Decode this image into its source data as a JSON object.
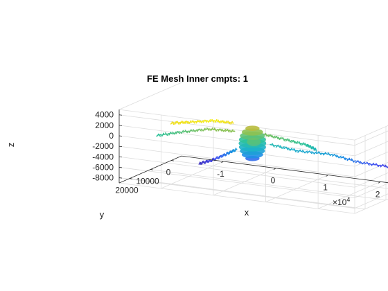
{
  "chart_data": {
    "type": "3d-mesh",
    "title": "FE Mesh Inner cmpts: 1",
    "xlabel": "x",
    "ylabel": "y",
    "zlabel": "z",
    "x_ticks": [
      "-1",
      "0",
      "1",
      "2"
    ],
    "x_exponent_base": "×10",
    "x_exponent_power": "4",
    "y_ticks": [
      "20000",
      "10000",
      "0"
    ],
    "z_ticks": [
      "4000",
      "2000",
      "0",
      "-2000",
      "-4000",
      "-6000",
      "-8000"
    ],
    "xlim": [
      -18000,
      27000
    ],
    "ylim": [
      -5000,
      25000
    ],
    "zlim": [
      -9000,
      5000
    ],
    "grid": true,
    "colormap": "parula",
    "colormap_colors": [
      "#3e26a8",
      "#4750f1",
      "#1d8fe5",
      "#1cb1c7",
      "#2ec29a",
      "#8cc151",
      "#e3b92e",
      "#f9fb15"
    ],
    "soma": {
      "x": 1500,
      "y": 10000,
      "z": -1500,
      "radius": 3600
    },
    "branches": [
      {
        "points": [
          [
            -500,
            14000,
            2800
          ],
          [
            -3500,
            16000,
            3200
          ],
          [
            -7000,
            19000,
            3000
          ],
          [
            -9500,
            21500,
            2900
          ]
        ]
      },
      {
        "points": [
          [
            -1500,
            11000,
            600
          ],
          [
            -6000,
            12000,
            600
          ],
          [
            -10500,
            14000,
            -200
          ],
          [
            -14000,
            17000,
            -800
          ]
        ]
      },
      {
        "points": [
          [
            3500,
            9500,
            400
          ],
          [
            7500,
            9000,
            -200
          ],
          [
            11000,
            8000,
            -900
          ],
          [
            12500,
            7000,
            -1800
          ]
        ]
      },
      {
        "points": [
          [
            4500,
            9000,
            -1500
          ],
          [
            9000,
            7000,
            -2500
          ],
          [
            14000,
            4000,
            -3000
          ],
          [
            18500,
            1000,
            -4500
          ],
          [
            23000,
            -3000,
            -5500
          ]
        ]
      },
      {
        "points": [
          [
            -1500,
            10000,
            -3000
          ],
          [
            -3500,
            10500,
            -4200
          ],
          [
            -5500,
            12000,
            -5300
          ],
          [
            -7500,
            13000,
            -6000
          ]
        ]
      }
    ]
  }
}
